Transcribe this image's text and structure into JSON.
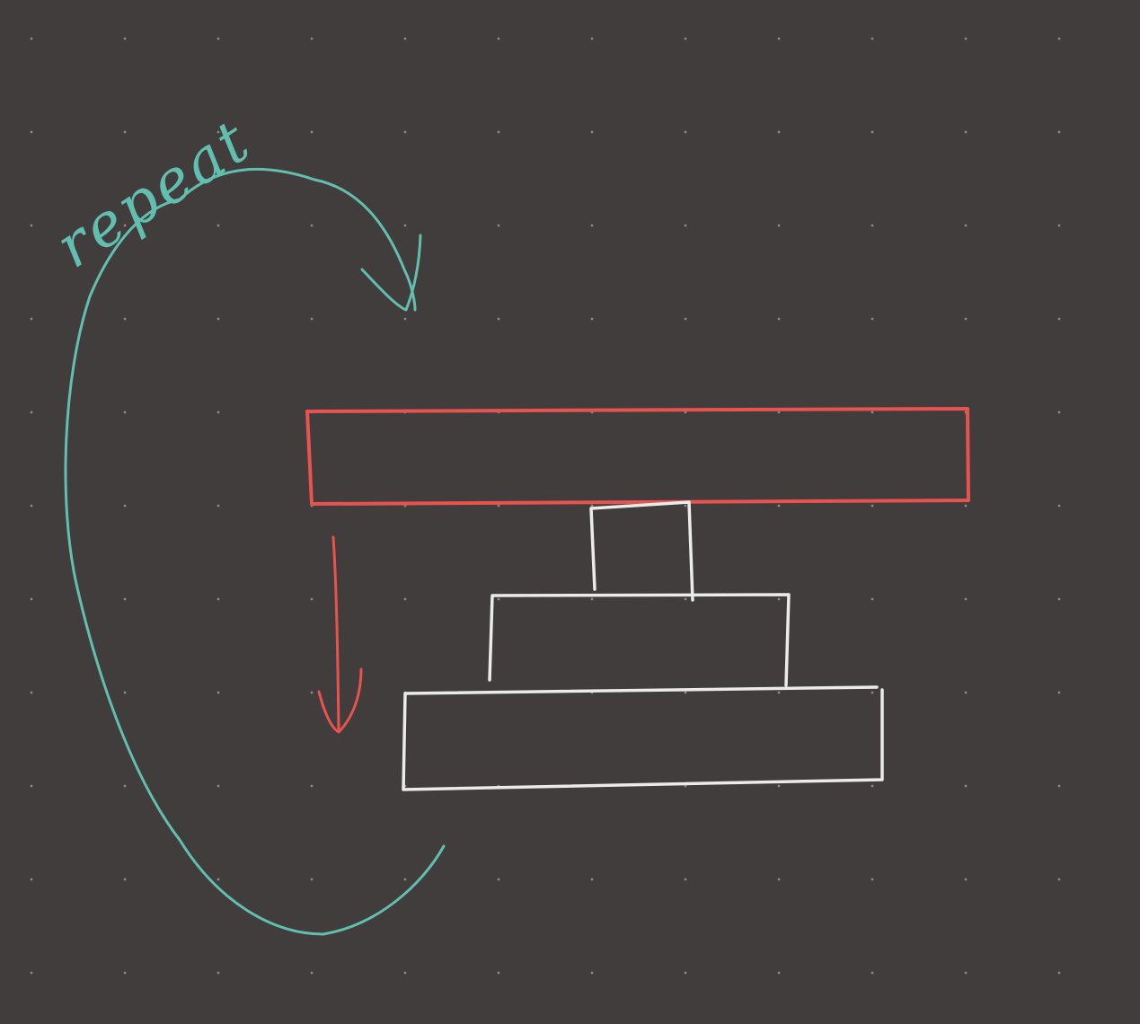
{
  "annotation": {
    "label": "repeat"
  },
  "colors": {
    "background": "#413d3c",
    "grid_dot": "#8b8886",
    "loop_stroke": "#62bfb0",
    "active_block": "#e8524f",
    "stacked_blocks": "#ebebea"
  },
  "icons": {
    "loop_arrow": "curved-loop-arrow-icon",
    "down_arrow": "down-arrow-icon"
  }
}
